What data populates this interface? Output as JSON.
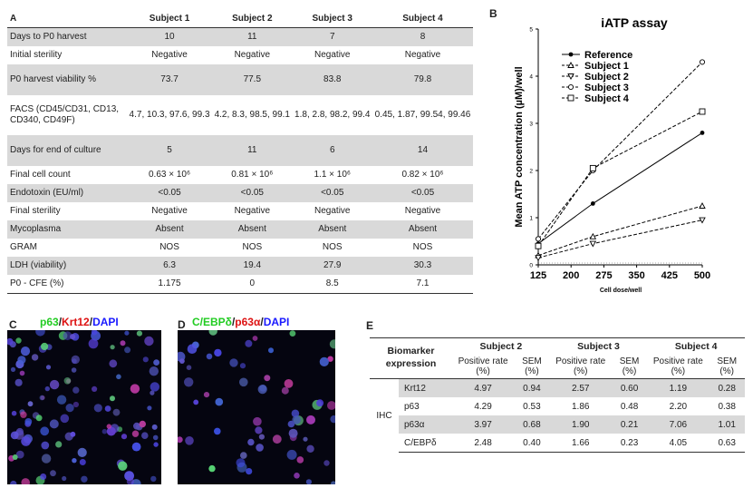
{
  "panels": {
    "a": "A",
    "b": "B",
    "c": "C",
    "d": "D",
    "e": "E"
  },
  "table_a": {
    "headers": [
      "Subject 1",
      "Subject 2",
      "Subject 3",
      "Subject 4"
    ],
    "rows": [
      {
        "label": "Days to P0 harvest",
        "values": [
          "10",
          "11",
          "7",
          "8"
        ]
      },
      {
        "label": "Initial sterility",
        "values": [
          "Negative",
          "Negative",
          "Negative",
          "Negative"
        ]
      },
      {
        "label": "P0 harvest viability %",
        "values": [
          "73.7",
          "77.5",
          "83.8",
          "79.8"
        ]
      },
      {
        "label": "FACS (CD45/CD31, CD13, CD340, CD49F)",
        "values": [
          "4.7, 10.3, 97.6, 99.3",
          "4.2, 8.3, 98.5, 99.1",
          "1.8, 2.8, 98.2, 99.4",
          "0.45, 1.87, 99.54, 99.46"
        ]
      },
      {
        "label": "Days for end of culture",
        "values": [
          "5",
          "11",
          "6",
          "14"
        ]
      },
      {
        "label": "Final cell count",
        "values": [
          "0.63 × 10⁶",
          "0.81 × 10⁶",
          "1.1 × 10⁶",
          "0.82 × 10⁶"
        ]
      },
      {
        "label": "Endotoxin (EU/ml)",
        "values": [
          "<0.05",
          "<0.05",
          "<0.05",
          "<0.05"
        ]
      },
      {
        "label": "Final sterility",
        "values": [
          "Negative",
          "Negative",
          "Negative",
          "Negative"
        ]
      },
      {
        "label": "Mycoplasma",
        "values": [
          "Absent",
          "Absent",
          "Absent",
          "Absent"
        ]
      },
      {
        "label": "GRAM",
        "values": [
          "NOS",
          "NOS",
          "NOS",
          "NOS"
        ]
      },
      {
        "label": "LDH (viability)",
        "values": [
          "6.3",
          "19.4",
          "27.9",
          "30.3"
        ]
      },
      {
        "label": "P0 - CFE (%)",
        "values": [
          "1.175",
          "0",
          "8.5",
          "7.1"
        ]
      }
    ]
  },
  "chart_data": {
    "type": "line",
    "title": "iATP assay",
    "xlabel": "Cell dose/well",
    "ylabel": "Mean ATP concentration (µM)/well",
    "x_ticks": [
      "125",
      "200",
      "275",
      "350",
      "425",
      "500"
    ],
    "y_ticks": [
      "0",
      "1",
      "2",
      "3",
      "4",
      "5"
    ],
    "xlim": [
      125,
      500
    ],
    "ylim": [
      0,
      5
    ],
    "legend_position": "top-left",
    "series": [
      {
        "name": "Reference",
        "marker": "filled-circle",
        "dash": "solid",
        "x": [
          125,
          250,
          500
        ],
        "y": [
          0.45,
          1.3,
          2.8
        ]
      },
      {
        "name": "Subject 1",
        "marker": "triangle-up",
        "dash": "dashed",
        "x": [
          125,
          250,
          500
        ],
        "y": [
          0.2,
          0.6,
          1.25
        ]
      },
      {
        "name": "Subject 2",
        "marker": "triangle-down",
        "dash": "dashed",
        "x": [
          125,
          250,
          500
        ],
        "y": [
          0.15,
          0.45,
          0.95
        ]
      },
      {
        "name": "Subject 3",
        "marker": "open-circle",
        "dash": "dashed",
        "x": [
          125,
          250,
          500
        ],
        "y": [
          0.55,
          2.0,
          4.3
        ]
      },
      {
        "name": "Subject 4",
        "marker": "square",
        "dash": "dashed",
        "x": [
          125,
          250,
          500
        ],
        "y": [
          0.4,
          2.05,
          3.25
        ]
      }
    ]
  },
  "panel_c": {
    "title_parts": [
      "p63",
      "/",
      "Krt12",
      "/",
      "DAPI"
    ]
  },
  "panel_d": {
    "title_parts": [
      "C/EBPδ",
      "/",
      "p63α",
      "/",
      "DAPI"
    ]
  },
  "colors": {
    "green": "#22cc22",
    "red": "#dd1111",
    "blue": "#1a1aff",
    "shade": "#d9d9d9"
  },
  "table_e": {
    "header_label": "Biomarker expression",
    "subjects": [
      "Subject 2",
      "Subject 3",
      "Subject 4"
    ],
    "sub_headers": [
      "Positive rate (%)",
      "SEM (%)"
    ],
    "group_label": "IHC",
    "rows": [
      {
        "marker": "Krt12",
        "values": [
          "4.97",
          "0.94",
          "2.57",
          "0.60",
          "1.19",
          "0.28"
        ]
      },
      {
        "marker": "p63",
        "values": [
          "4.29",
          "0.53",
          "1.86",
          "0.48",
          "2.20",
          "0.38"
        ]
      },
      {
        "marker": "p63α",
        "values": [
          "3.97",
          "0.68",
          "1.90",
          "0.21",
          "7.06",
          "1.01"
        ]
      },
      {
        "marker": "C/EBPδ",
        "values": [
          "2.48",
          "0.40",
          "1.66",
          "0.23",
          "4.05",
          "0.63"
        ]
      }
    ]
  }
}
